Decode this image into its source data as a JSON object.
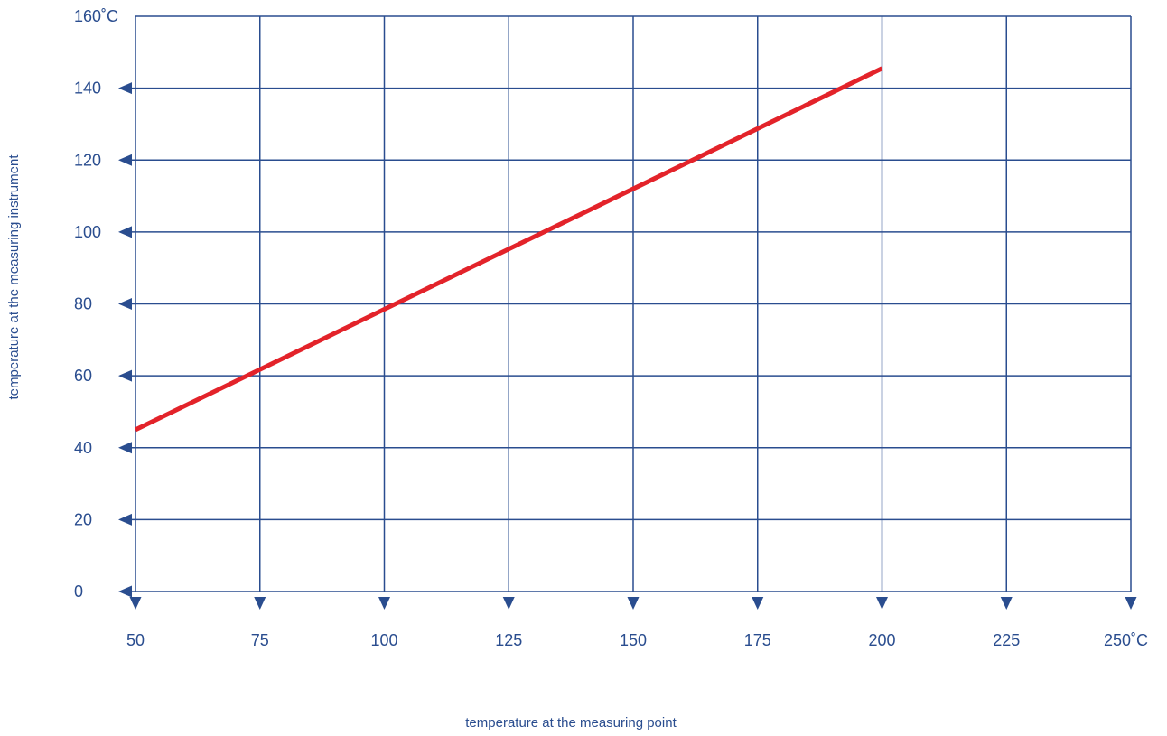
{
  "chart_data": {
    "type": "line",
    "title": "",
    "xlabel": "temperature at the measuring point",
    "ylabel": "temperature at the measuring instrument",
    "x_ticks": [
      "50",
      "75",
      "100",
      "125",
      "150",
      "175",
      "200",
      "225",
      "250˚C"
    ],
    "y_ticks": [
      "0",
      "20",
      "40",
      "60",
      "80",
      "100",
      "120",
      "140",
      "160˚C"
    ],
    "xlim": [
      50,
      250
    ],
    "ylim": [
      0,
      160
    ],
    "grid": true,
    "legend": "none",
    "series": [
      {
        "x": [
          50,
          200
        ],
        "y": [
          45,
          145.5
        ]
      }
    ],
    "colors": {
      "axis": "#2a4d8f",
      "line": "#e3232a",
      "text": "#2a4d8f"
    }
  }
}
